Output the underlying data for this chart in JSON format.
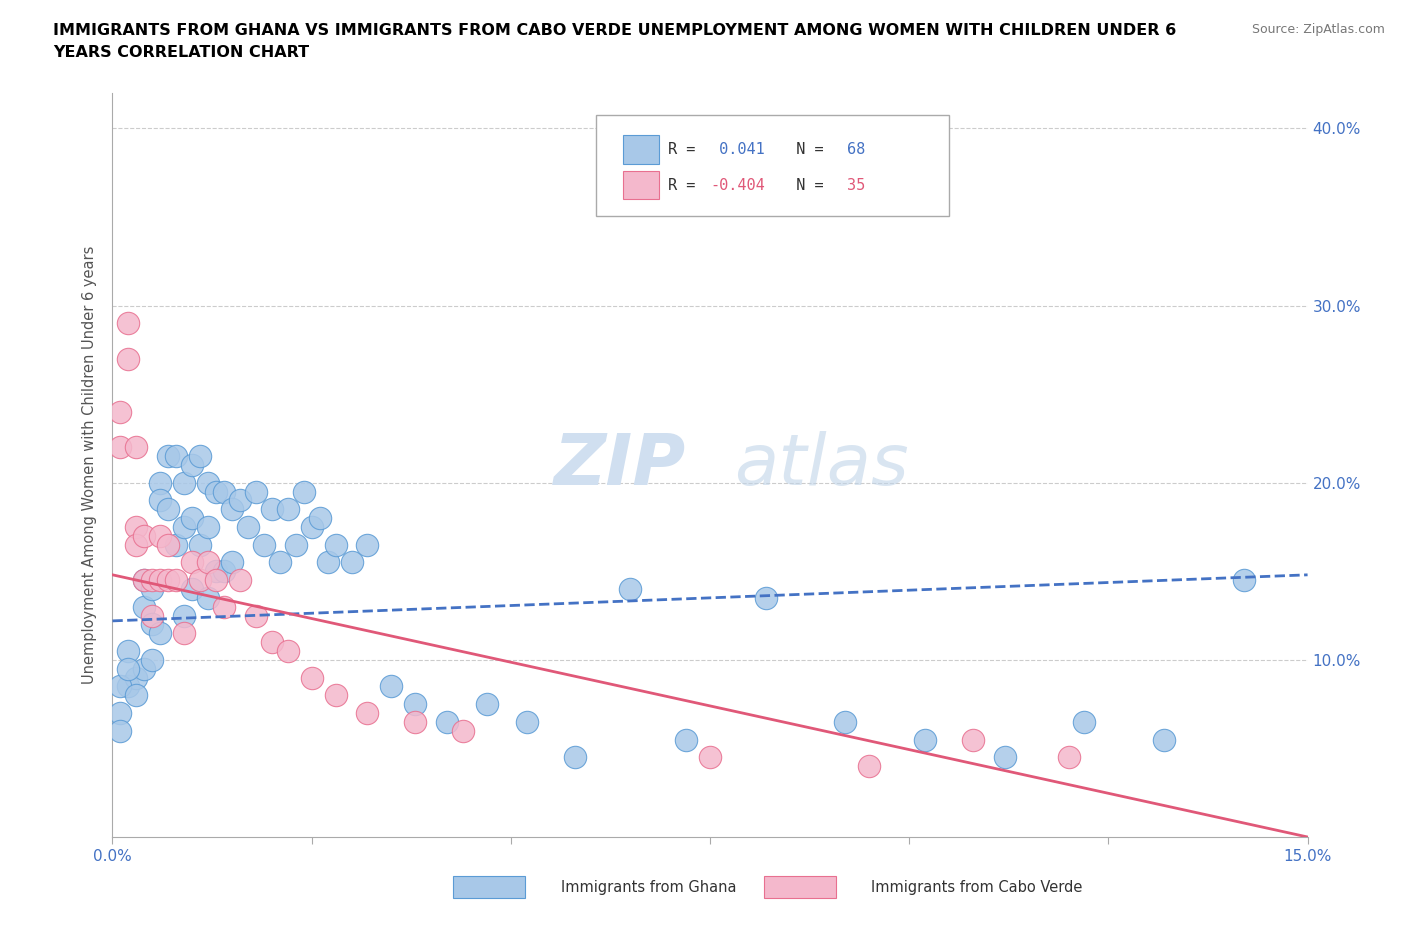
{
  "title_line1": "IMMIGRANTS FROM GHANA VS IMMIGRANTS FROM CABO VERDE UNEMPLOYMENT AMONG WOMEN WITH CHILDREN UNDER 6",
  "title_line2": "YEARS CORRELATION CHART",
  "source": "Source: ZipAtlas.com",
  "ylabel_label": "Unemployment Among Women with Children Under 6 years",
  "xlim": [
    0.0,
    0.15
  ],
  "ylim": [
    0.0,
    0.42
  ],
  "xticks": [
    0.0,
    0.025,
    0.05,
    0.075,
    0.1,
    0.125,
    0.15
  ],
  "xtick_labels": [
    "0.0%",
    "",
    "",
    "",
    "",
    "",
    "15.0%"
  ],
  "yticks": [
    0.0,
    0.1,
    0.2,
    0.3,
    0.4
  ],
  "ytick_labels": [
    "",
    "10.0%",
    "20.0%",
    "30.0%",
    "40.0%"
  ],
  "legend_r1_R": "R = ",
  "legend_r1_val": " 0.041",
  "legend_r1_N": " N = ",
  "legend_r1_Nval": "68",
  "legend_r2_R": "R = ",
  "legend_r2_val": "-0.404",
  "legend_r2_N": " N = ",
  "legend_r2_Nval": "35",
  "color_ghana": "#a8c8e8",
  "color_cabo": "#f4b8cc",
  "edge_color_ghana": "#5b9bd5",
  "edge_color_cabo": "#e87090",
  "line_color_ghana": "#4472c4",
  "line_color_cabo": "#e05878",
  "watermark_color": "#d0dff0",
  "ghana_x": [
    0.002,
    0.003,
    0.004,
    0.004,
    0.004,
    0.005,
    0.005,
    0.005,
    0.006,
    0.006,
    0.006,
    0.007,
    0.007,
    0.008,
    0.008,
    0.009,
    0.009,
    0.009,
    0.01,
    0.01,
    0.01,
    0.011,
    0.011,
    0.012,
    0.012,
    0.012,
    0.013,
    0.013,
    0.014,
    0.014,
    0.015,
    0.015,
    0.016,
    0.017,
    0.018,
    0.019,
    0.02,
    0.021,
    0.022,
    0.023,
    0.024,
    0.025,
    0.026,
    0.027,
    0.028,
    0.03,
    0.032,
    0.035,
    0.038,
    0.042,
    0.047,
    0.052,
    0.058,
    0.065,
    0.072,
    0.082,
    0.092,
    0.102,
    0.112,
    0.122,
    0.132,
    0.142,
    0.001,
    0.001,
    0.001,
    0.002,
    0.002,
    0.003
  ],
  "ghana_y": [
    0.085,
    0.09,
    0.145,
    0.13,
    0.095,
    0.14,
    0.12,
    0.1,
    0.2,
    0.19,
    0.115,
    0.215,
    0.185,
    0.215,
    0.165,
    0.2,
    0.175,
    0.125,
    0.21,
    0.18,
    0.14,
    0.215,
    0.165,
    0.2,
    0.175,
    0.135,
    0.195,
    0.15,
    0.195,
    0.15,
    0.185,
    0.155,
    0.19,
    0.175,
    0.195,
    0.165,
    0.185,
    0.155,
    0.185,
    0.165,
    0.195,
    0.175,
    0.18,
    0.155,
    0.165,
    0.155,
    0.165,
    0.085,
    0.075,
    0.065,
    0.075,
    0.065,
    0.045,
    0.14,
    0.055,
    0.135,
    0.065,
    0.055,
    0.045,
    0.065,
    0.055,
    0.145,
    0.085,
    0.07,
    0.06,
    0.105,
    0.095,
    0.08
  ],
  "cabo_x": [
    0.001,
    0.001,
    0.002,
    0.002,
    0.003,
    0.003,
    0.003,
    0.004,
    0.004,
    0.005,
    0.005,
    0.006,
    0.006,
    0.007,
    0.007,
    0.008,
    0.009,
    0.01,
    0.011,
    0.012,
    0.013,
    0.014,
    0.016,
    0.018,
    0.02,
    0.022,
    0.025,
    0.028,
    0.032,
    0.038,
    0.044,
    0.075,
    0.095,
    0.108,
    0.12
  ],
  "cabo_y": [
    0.22,
    0.24,
    0.29,
    0.27,
    0.22,
    0.175,
    0.165,
    0.17,
    0.145,
    0.145,
    0.125,
    0.17,
    0.145,
    0.165,
    0.145,
    0.145,
    0.115,
    0.155,
    0.145,
    0.155,
    0.145,
    0.13,
    0.145,
    0.125,
    0.11,
    0.105,
    0.09,
    0.08,
    0.07,
    0.065,
    0.06,
    0.045,
    0.04,
    0.055,
    0.045
  ],
  "ghana_line_x0": 0.0,
  "ghana_line_x1": 0.15,
  "ghana_line_y0": 0.122,
  "ghana_line_y1": 0.148,
  "cabo_line_x0": 0.0,
  "cabo_line_x1": 0.15,
  "cabo_line_y0": 0.148,
  "cabo_line_y1": 0.0
}
